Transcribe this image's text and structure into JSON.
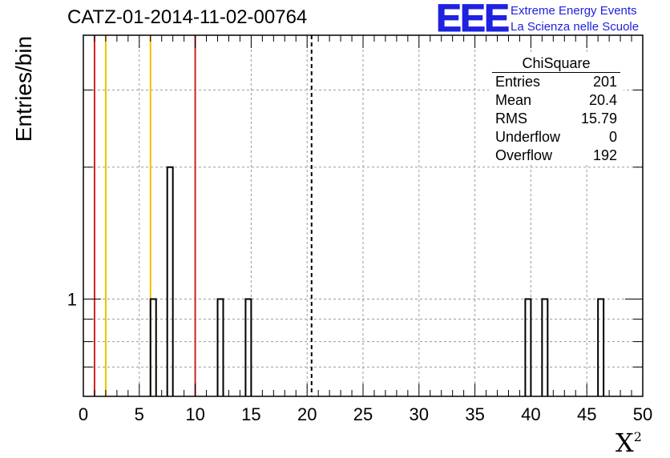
{
  "header": {
    "title": "CATZ-01-2014-11-02-00764",
    "logo_letters": "EEE",
    "logo_line1": "Extreme Energy Events",
    "logo_line2": "La Scienza nelle Scuole"
  },
  "stats": {
    "name": "ChiSquare",
    "rows": [
      {
        "label": "Entries",
        "value": "201"
      },
      {
        "label": "Mean",
        "value": "20.4"
      },
      {
        "label": "RMS",
        "value": "15.79"
      },
      {
        "label": "Underflow",
        "value": "0"
      },
      {
        "label": "Overflow",
        "value": "192"
      }
    ]
  },
  "colors": {
    "red_line": "#d42020",
    "yellow_line": "#f0c000",
    "logo_blue": "#1e22e0"
  },
  "chart_data": {
    "type": "bar",
    "title": "CATZ-01-2014-11-02-00764",
    "xlabel": "X",
    "xlabel_superscript": "2",
    "ylabel": "Entries/bin",
    "xlim": [
      0,
      50
    ],
    "ylim": [
      0.6,
      4
    ],
    "yscale": "log",
    "grid": true,
    "xticks": [
      "0",
      "5",
      "10",
      "15",
      "20",
      "25",
      "30",
      "35",
      "40",
      "45",
      "50"
    ],
    "yticks": [
      "1"
    ],
    "bin_width": 0.5,
    "bins": [
      {
        "x": 6.0,
        "count": 1
      },
      {
        "x": 7.5,
        "count": 2
      },
      {
        "x": 12.0,
        "count": 1
      },
      {
        "x": 14.5,
        "count": 1
      },
      {
        "x": 39.5,
        "count": 1
      },
      {
        "x": 41.0,
        "count": 1
      },
      {
        "x": 46.0,
        "count": 1
      }
    ],
    "vertical_lines": [
      {
        "x": 1.0,
        "color": "red"
      },
      {
        "x": 2.0,
        "color": "yellow"
      },
      {
        "x": 6.0,
        "color": "yellow"
      },
      {
        "x": 10.0,
        "color": "red"
      },
      {
        "x": 20.4,
        "color": "black",
        "style": "dashed"
      }
    ]
  }
}
